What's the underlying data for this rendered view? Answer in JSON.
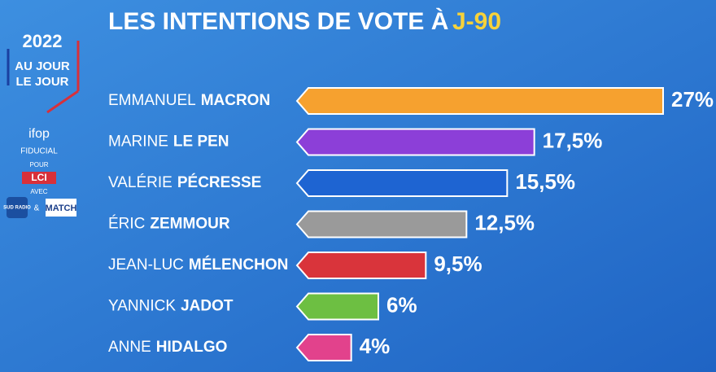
{
  "chart_data": {
    "type": "bar",
    "title": "LES INTENTIONS DE VOTE À",
    "title_highlight": "J-90",
    "categories": [
      [
        "EMMANUEL",
        "MACRON"
      ],
      [
        "MARINE",
        "LE PEN"
      ],
      [
        "VALÉRIE",
        "PÉCRESSE"
      ],
      [
        "ÉRIC",
        "ZEMMOUR"
      ],
      [
        "JEAN-LUC",
        "MÉLENCHON"
      ],
      [
        "YANNICK",
        "JADOT"
      ],
      [
        "ANNE",
        "HIDALGO"
      ]
    ],
    "values": [
      27,
      17.5,
      15.5,
      12.5,
      9.5,
      6,
      4
    ],
    "value_labels": [
      "27%",
      "17,5%",
      "15,5%",
      "12,5%",
      "9,5%",
      "6%",
      "4%"
    ],
    "colors": [
      "#f6a12f",
      "#8c3fd8",
      "#1e64d2",
      "#9a9a9a",
      "#d9343b",
      "#6dbf42",
      "#e2428c"
    ]
  },
  "branding": {
    "year": "2022",
    "show_line1": "AU JOUR",
    "show_line2": "LE JOUR",
    "pollster": "ifop",
    "pollster_sub": "FIDUCIAL",
    "pour": "POUR",
    "channel": "LCI",
    "avec": "AVEC",
    "radio": "SUD RADIO",
    "and": "&",
    "magazine": "MATCH"
  }
}
